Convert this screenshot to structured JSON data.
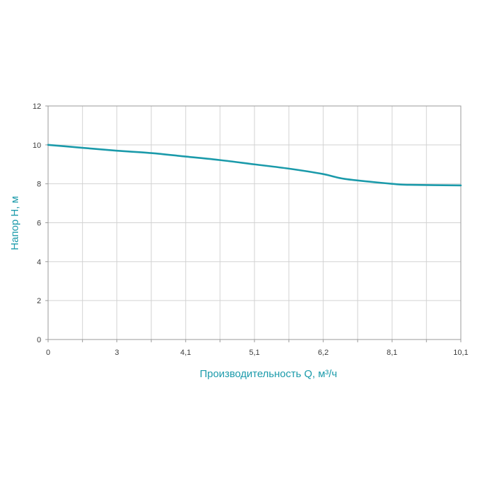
{
  "chart_data": {
    "type": "line",
    "xlabel": "Производительность Q, м³/ч",
    "ylabel": "Напор H, м",
    "x_ticks": [
      "0",
      "3",
      "4,1",
      "5,1",
      "6,2",
      "8,1",
      "10,1"
    ],
    "y_ticks": [
      "0",
      "2",
      "4",
      "6",
      "8",
      "10",
      "12"
    ],
    "ylim": [
      0,
      12
    ],
    "grid": true,
    "series": [
      {
        "color": "#1a9aaa",
        "points": [
          {
            "x": 0,
            "y": 10.0
          },
          {
            "x": 1.5,
            "y": 9.85
          },
          {
            "x": 3,
            "y": 9.7
          },
          {
            "x": 3.55,
            "y": 9.58
          },
          {
            "x": 4.1,
            "y": 9.4
          },
          {
            "x": 4.6,
            "y": 9.22
          },
          {
            "x": 5.1,
            "y": 9.0
          },
          {
            "x": 5.65,
            "y": 8.78
          },
          {
            "x": 6.2,
            "y": 8.5
          },
          {
            "x": 6.8,
            "y": 8.25
          },
          {
            "x": 8.1,
            "y": 8.0
          },
          {
            "x": 8.6,
            "y": 7.95
          },
          {
            "x": 10.1,
            "y": 7.92
          }
        ]
      }
    ],
    "colors": {
      "line": "#1a9aaa",
      "axis_title": "#1a9aaa",
      "grid": "#d2d2d2",
      "frame": "#9a9a9a"
    }
  }
}
